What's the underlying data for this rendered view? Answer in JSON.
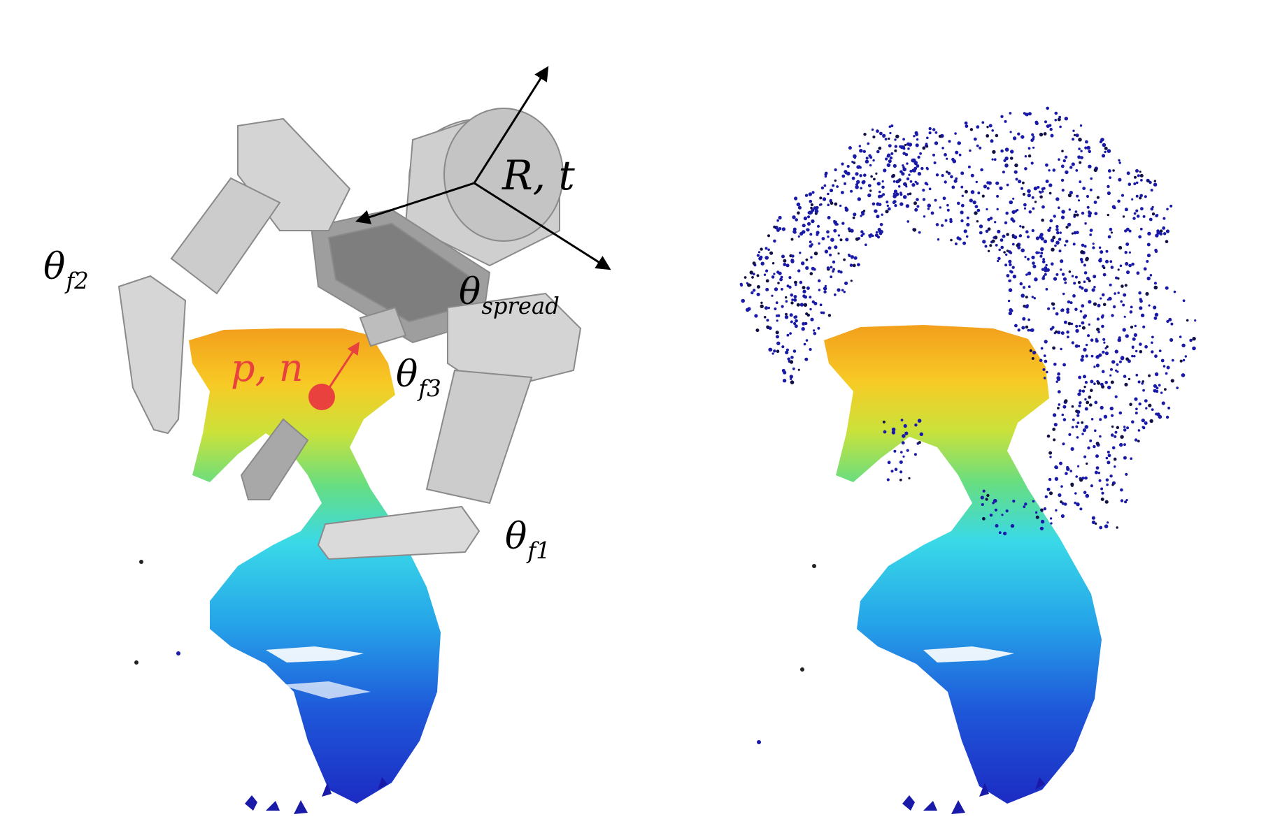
{
  "labels": {
    "theta": "θ",
    "f2": "f2",
    "f3": "f3",
    "f1": "f1",
    "spread": "spread",
    "rt": "R, t",
    "pn": "p, n"
  },
  "colors": {
    "gripper_fill": "#cfcfcf",
    "gripper_edge": "#8a8a8a",
    "contact_point": "#e8413e",
    "ghost_points": "#1a1aa8",
    "cloud_top": "#f29a10",
    "cloud_mid": "#2fd7e6",
    "cloud_bottom": "#1020c0"
  },
  "panels": [
    {
      "name": "gripper-overlay",
      "icons": [
        "gripper-icon",
        "point-cloud-icon",
        "frame-axes-icon",
        "contact-point-icon"
      ]
    },
    {
      "name": "point-cloud-grasp",
      "icons": [
        "point-cloud-icon",
        "gripper-point-cloud-icon"
      ]
    }
  ]
}
